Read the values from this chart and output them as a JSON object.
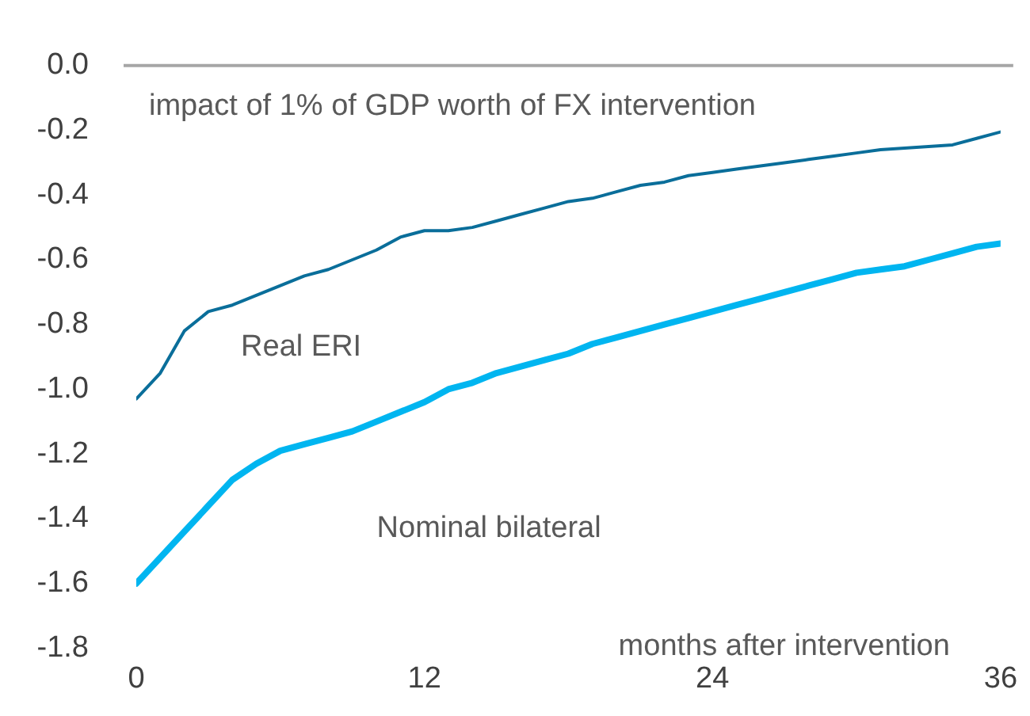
{
  "chart_data": {
    "type": "line",
    "title": "impact of 1% of GDP worth of FX intervention",
    "xlabel": "months after intervention",
    "x": [
      0,
      1,
      2,
      3,
      4,
      5,
      6,
      7,
      8,
      9,
      10,
      11,
      12,
      13,
      14,
      15,
      16,
      17,
      18,
      19,
      20,
      21,
      22,
      23,
      24,
      25,
      26,
      27,
      28,
      29,
      30,
      31,
      32,
      33,
      34,
      35,
      36
    ],
    "series": [
      {
        "name": "Real ERI",
        "color": "#0a6e9a",
        "values": [
          -1.03,
          -0.95,
          -0.82,
          -0.76,
          -0.74,
          -0.71,
          -0.68,
          -0.65,
          -0.63,
          -0.6,
          -0.57,
          -0.53,
          -0.51,
          -0.51,
          -0.5,
          -0.48,
          -0.46,
          -0.44,
          -0.42,
          -0.41,
          -0.39,
          -0.37,
          -0.36,
          -0.34,
          -0.33,
          -0.32,
          -0.31,
          -0.3,
          -0.29,
          -0.28,
          -0.27,
          -0.26,
          -0.255,
          -0.25,
          -0.245,
          -0.225,
          -0.205
        ]
      },
      {
        "name": "Nominal bilateral",
        "color": "#00b5f0",
        "values": [
          -1.6,
          -1.52,
          -1.44,
          -1.36,
          -1.28,
          -1.23,
          -1.19,
          -1.17,
          -1.15,
          -1.13,
          -1.1,
          -1.07,
          -1.04,
          -1.0,
          -0.98,
          -0.95,
          -0.93,
          -0.91,
          -0.89,
          -0.86,
          -0.84,
          -0.82,
          -0.8,
          -0.78,
          -0.76,
          -0.74,
          -0.72,
          -0.7,
          -0.68,
          -0.66,
          -0.64,
          -0.63,
          -0.62,
          -0.6,
          -0.58,
          -0.56,
          -0.55
        ]
      }
    ],
    "xlim": [
      0,
      36
    ],
    "xticks": [
      0,
      12,
      24,
      36
    ],
    "ylim": [
      -1.8,
      0
    ],
    "yticks": [
      {
        "value": 0,
        "label": "0.0"
      },
      -0.2,
      -0.4,
      -0.6,
      -0.8,
      {
        "value": -1,
        "label": "-1.0"
      },
      -1.2,
      -1.4,
      -1.6,
      -1.8
    ],
    "ref_lines": [
      {
        "axis": "y",
        "value": 0,
        "color": "#a6a6a6"
      }
    ],
    "grid": false,
    "legend": false,
    "marker": "none",
    "line_style": "solid"
  }
}
